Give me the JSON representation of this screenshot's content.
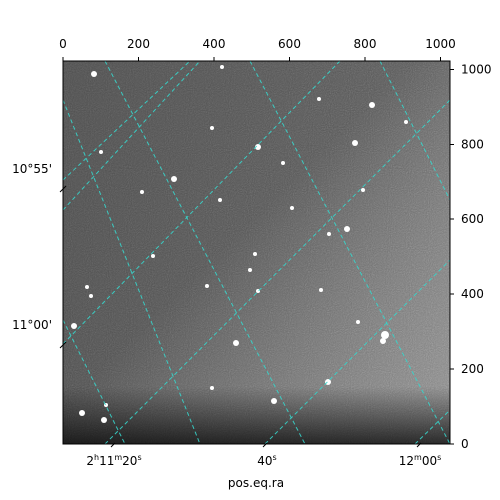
{
  "figure": {
    "xlabel": "pos.eq.ra",
    "top_axis_ticks": [
      "0",
      "200",
      "400",
      "600",
      "800",
      "1000"
    ],
    "right_axis_ticks": [
      "0",
      "200",
      "400",
      "600",
      "800",
      "1000"
    ],
    "dec_ticks": [
      "10°55'",
      "11°00'"
    ],
    "ra_ticks": [
      {
        "hms": "2",
        "h": "h",
        "mid": "11",
        "m": "m",
        "s": "20",
        "sec": "s"
      },
      {
        "hms": "",
        "h": "",
        "mid": "",
        "m": "",
        "s": "40",
        "sec": "s"
      },
      {
        "hms": "",
        "h": "",
        "mid": "12",
        "m": "m",
        "s": "00",
        "sec": "s"
      }
    ],
    "grid_color": "#37d6cc",
    "background_color": "#777777"
  }
}
